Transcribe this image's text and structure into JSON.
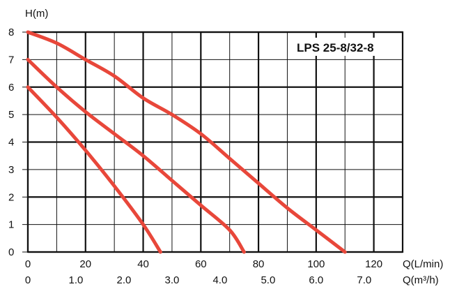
{
  "chart_data": {
    "type": "line",
    "title": "LPS 25-8/32-8",
    "ylabel": "H(m)",
    "xlabel": "Q(L/min)",
    "xlabel2": "Q(m³/h)",
    "xlim": [
      0,
      130
    ],
    "ylim": [
      0,
      8
    ],
    "x_ticks": [
      0,
      20,
      40,
      60,
      80,
      100,
      120
    ],
    "x_tick_labels": [
      "0",
      "20",
      "40",
      "60",
      "80",
      "100",
      "120"
    ],
    "x2_ticks": [
      0,
      1.0,
      2.0,
      3.0,
      4.0,
      5.0,
      6.0,
      7.0
    ],
    "x2_tick_labels": [
      "0",
      "1.0",
      "2.0",
      "3.0",
      "4.0",
      "5.0",
      "6.0",
      "7.0"
    ],
    "y_ticks": [
      0,
      1,
      2,
      3,
      4,
      5,
      6,
      7,
      8
    ],
    "y_tick_labels": [
      "0",
      "1",
      "2",
      "3",
      "4",
      "5",
      "6",
      "7",
      "8"
    ],
    "grid": true,
    "series_color": "#e8473a",
    "series": [
      {
        "x": [
          0,
          10,
          20,
          30,
          40,
          46
        ],
        "y": [
          6.0,
          4.9,
          3.7,
          2.4,
          1.0,
          0
        ]
      },
      {
        "x": [
          0,
          10,
          20,
          30,
          40,
          50,
          60,
          70,
          75
        ],
        "y": [
          7.0,
          6.0,
          5.1,
          4.3,
          3.5,
          2.6,
          1.7,
          0.8,
          0
        ]
      },
      {
        "x": [
          0,
          10,
          20,
          30,
          40,
          50,
          60,
          70,
          80,
          90,
          100,
          110
        ],
        "y": [
          8.0,
          7.6,
          7.0,
          6.4,
          5.6,
          5.0,
          4.3,
          3.4,
          2.5,
          1.6,
          0.8,
          0
        ]
      }
    ]
  }
}
